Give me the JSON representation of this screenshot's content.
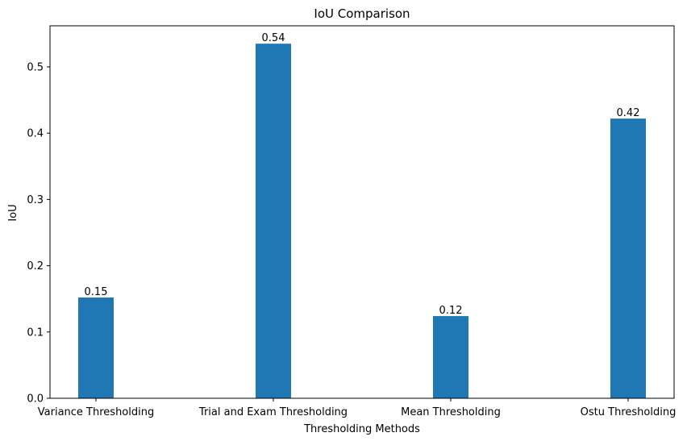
{
  "chart_data": {
    "type": "bar",
    "title": "IoU Comparison",
    "xlabel": "Thresholding Methods",
    "ylabel": "IoU",
    "categories": [
      "Variance Thresholding",
      "Trial and Exam Thresholding",
      "Mean Thresholding",
      "Ostu Thresholding"
    ],
    "values": [
      0.152,
      0.535,
      0.124,
      0.422
    ],
    "data_labels": [
      "0.15",
      "0.54",
      "0.12",
      "0.42"
    ],
    "yticks": [
      0.0,
      0.1,
      0.2,
      0.3,
      0.4,
      0.5
    ],
    "ytick_labels": [
      "0.0",
      "0.1",
      "0.2",
      "0.3",
      "0.4",
      "0.5"
    ],
    "ylim": [
      0,
      0.562
    ],
    "grid": false,
    "legend": false,
    "bar_color": "#1f77b4"
  }
}
